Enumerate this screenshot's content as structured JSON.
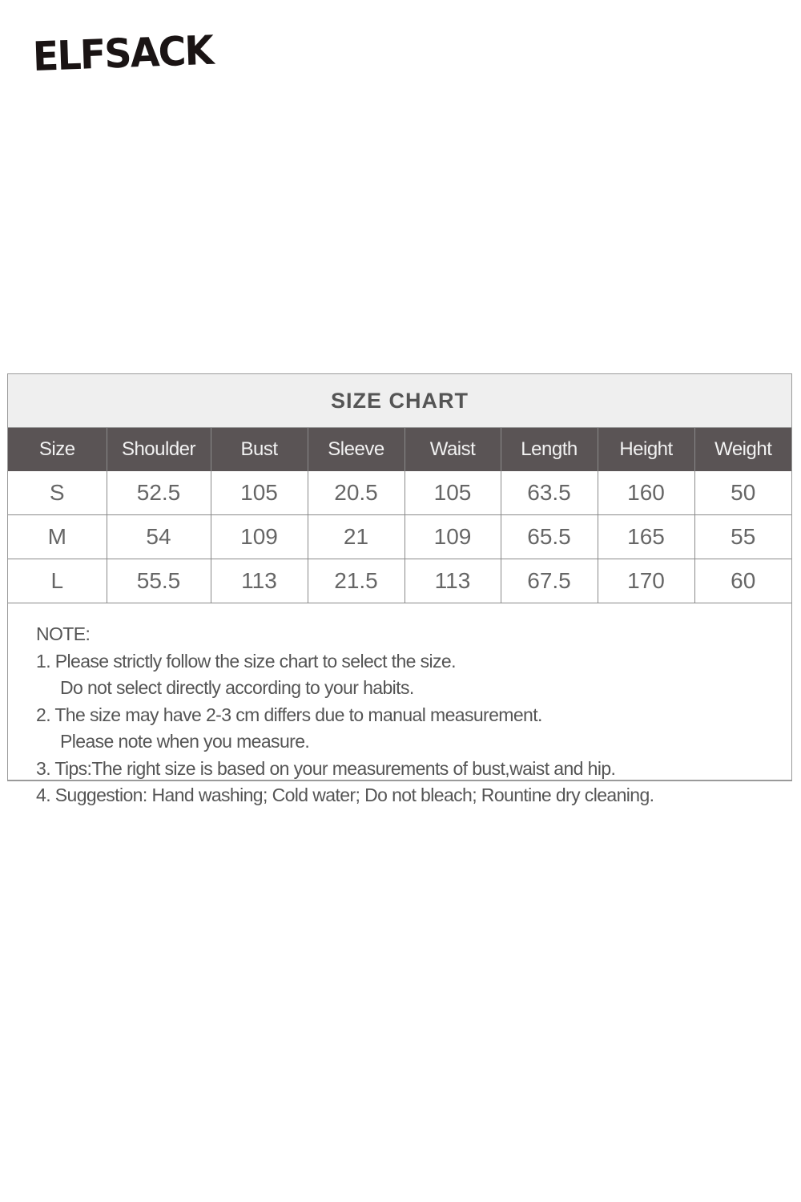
{
  "brand": {
    "logo_text": "ELFSACK"
  },
  "size_chart": {
    "title": "SIZE CHART",
    "columns": [
      "Size",
      "Shoulder",
      "Bust",
      "Sleeve",
      "Waist",
      "Length",
      "Height",
      "Weight"
    ],
    "rows": [
      [
        "S",
        "52.5",
        "105",
        "20.5",
        "105",
        "63.5",
        "160",
        "50"
      ],
      [
        "M",
        "54",
        "109",
        "21",
        "109",
        "65.5",
        "165",
        "55"
      ],
      [
        "L",
        "55.5",
        "113",
        "21.5",
        "113",
        "67.5",
        "170",
        "60"
      ]
    ]
  },
  "note": {
    "heading": "NOTE:",
    "lines": [
      "1. Please strictly follow the size chart to select the size.",
      "Do not select directly according to your habits.",
      "2. The size may have 2-3 cm differs due to manual measurement.",
      "Please note when you measure.",
      "3. Tips:The right size is based on your measurements of bust,waist and hip.",
      "4. Suggestion: Hand washing; Cold water; Do not bleach; Rountine dry cleaning."
    ]
  }
}
